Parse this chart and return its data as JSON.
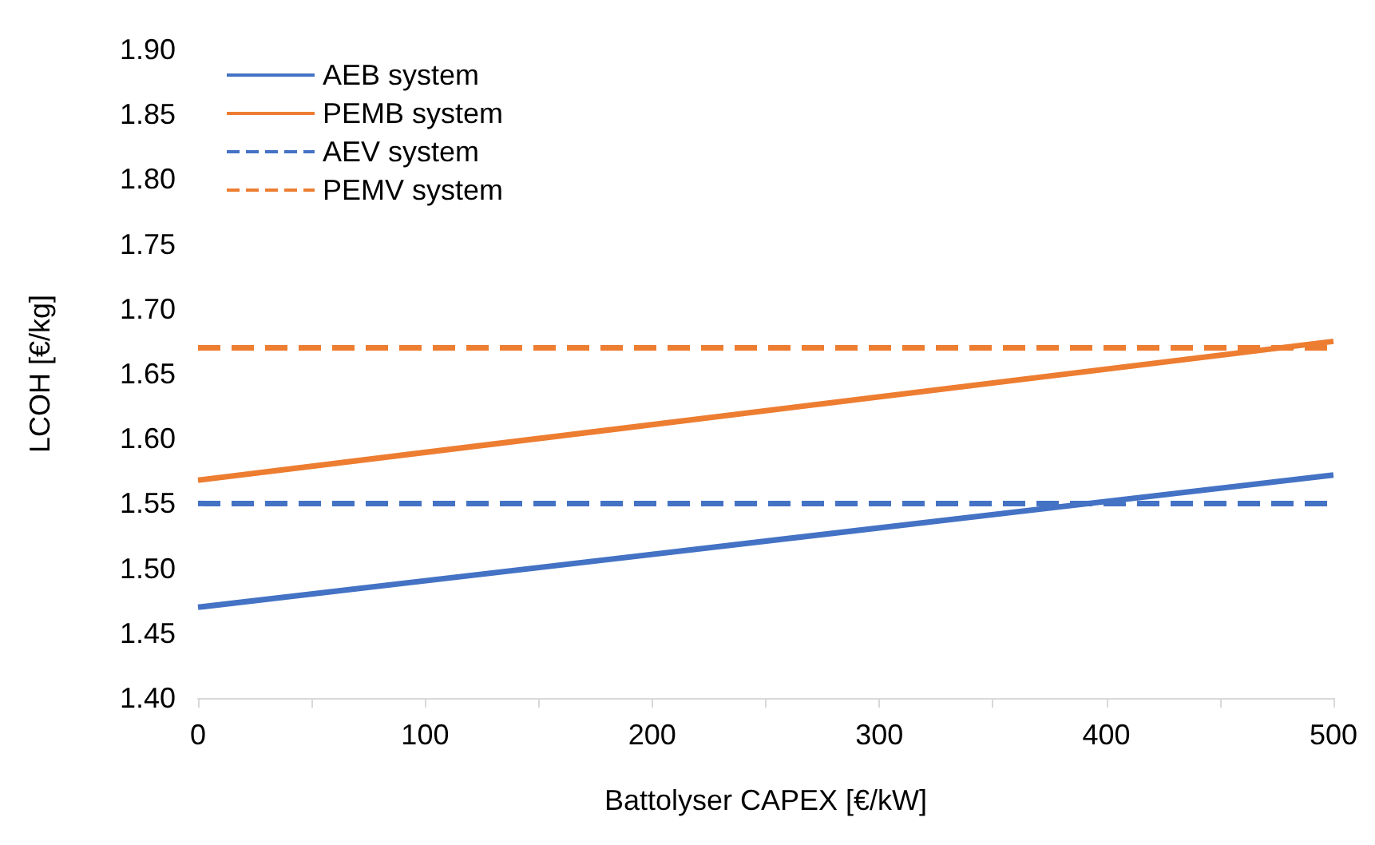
{
  "chart_data": {
    "type": "line",
    "xlabel": "Battolyser CAPEX [€/kW]",
    "ylabel": "LCOH [€/kg]",
    "xlim": [
      0,
      500
    ],
    "xticks": [
      0,
      100,
      200,
      300,
      400,
      500
    ],
    "ylim": [
      1.4,
      1.9
    ],
    "yticks": [
      {
        "value": 1.4,
        "label": "1.40"
      },
      {
        "value": 1.45,
        "label": "1.45"
      },
      {
        "value": 1.5,
        "label": "1.50"
      },
      {
        "value": 1.55,
        "label": "1.55"
      },
      {
        "value": 1.6,
        "label": "1.60"
      },
      {
        "value": 1.65,
        "label": "1.65"
      },
      {
        "value": 1.7,
        "label": "1.70"
      },
      {
        "value": 1.75,
        "label": "1.75"
      },
      {
        "value": 1.8,
        "label": "1.80"
      },
      {
        "value": 1.85,
        "label": "1.85"
      },
      {
        "value": 1.9,
        "label": "1.90"
      }
    ],
    "x": [
      0,
      500
    ],
    "grid": false,
    "legend": "top left",
    "marker": "none",
    "series": [
      {
        "name": "AEB system",
        "color": "#4472c4",
        "values": [
          1.47,
          1.572
        ],
        "line_style": "solid"
      },
      {
        "name": "PEMB system",
        "color": "#ed7d31",
        "values": [
          1.568,
          1.675
        ],
        "line_style": "solid"
      },
      {
        "name": "AEV system",
        "color": "#4472c4",
        "values": [
          1.55,
          1.55
        ],
        "line_style": "dashed"
      },
      {
        "name": "PEMV system",
        "color": "#ed7d31",
        "values": [
          1.67,
          1.67
        ],
        "line_style": "dashed"
      }
    ]
  }
}
